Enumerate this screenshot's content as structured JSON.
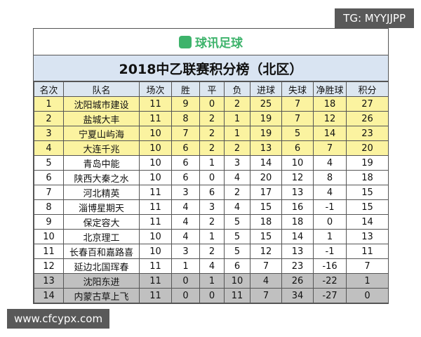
{
  "watermark_top": "TG: MYYJJPP",
  "logo": "球讯足球",
  "title": "2018中乙联赛积分榜（北区）",
  "table": {
    "header": [
      "名次",
      "队名",
      "场次",
      "胜",
      "平",
      "负",
      "进球",
      "失球",
      "净胜球",
      "积分"
    ],
    "rows": [
      [
        "1",
        "沈阳城市建设",
        "11",
        "9",
        "0",
        "2",
        "25",
        "7",
        "18",
        "27"
      ],
      [
        "2",
        "盐城大丰",
        "11",
        "8",
        "2",
        "1",
        "19",
        "7",
        "12",
        "26"
      ],
      [
        "3",
        "宁夏山屿海",
        "10",
        "7",
        "2",
        "1",
        "19",
        "5",
        "14",
        "23"
      ],
      [
        "4",
        "大连千兆",
        "10",
        "6",
        "2",
        "2",
        "13",
        "6",
        "7",
        "20"
      ],
      [
        "5",
        "青岛中能",
        "10",
        "6",
        "1",
        "3",
        "14",
        "10",
        "4",
        "19"
      ],
      [
        "6",
        "陕西大秦之水",
        "10",
        "6",
        "0",
        "4",
        "20",
        "12",
        "8",
        "18"
      ],
      [
        "7",
        "河北精英",
        "11",
        "3",
        "6",
        "2",
        "17",
        "13",
        "4",
        "15"
      ],
      [
        "8",
        "淄博星期天",
        "11",
        "4",
        "3",
        "4",
        "15",
        "16",
        "-1",
        "15"
      ],
      [
        "9",
        "保定容大",
        "11",
        "4",
        "2",
        "5",
        "18",
        "18",
        "0",
        "14"
      ],
      [
        "10",
        "北京理工",
        "10",
        "4",
        "1",
        "5",
        "15",
        "14",
        "1",
        "13"
      ],
      [
        "11",
        "长春百和嘉路喜",
        "10",
        "3",
        "2",
        "5",
        "12",
        "13",
        "-1",
        "11"
      ],
      [
        "12",
        "延边北国珲春",
        "11",
        "1",
        "4",
        "6",
        "7",
        "23",
        "-16",
        "7"
      ],
      [
        "13",
        "沈阳东进",
        "11",
        "0",
        "1",
        "10",
        "4",
        "26",
        "-22",
        "1"
      ],
      [
        "14",
        "内蒙古草上飞",
        "11",
        "0",
        "0",
        "11",
        "7",
        "34",
        "-27",
        "0"
      ]
    ]
  },
  "watermark_bottom": "www.cfcypx.com"
}
